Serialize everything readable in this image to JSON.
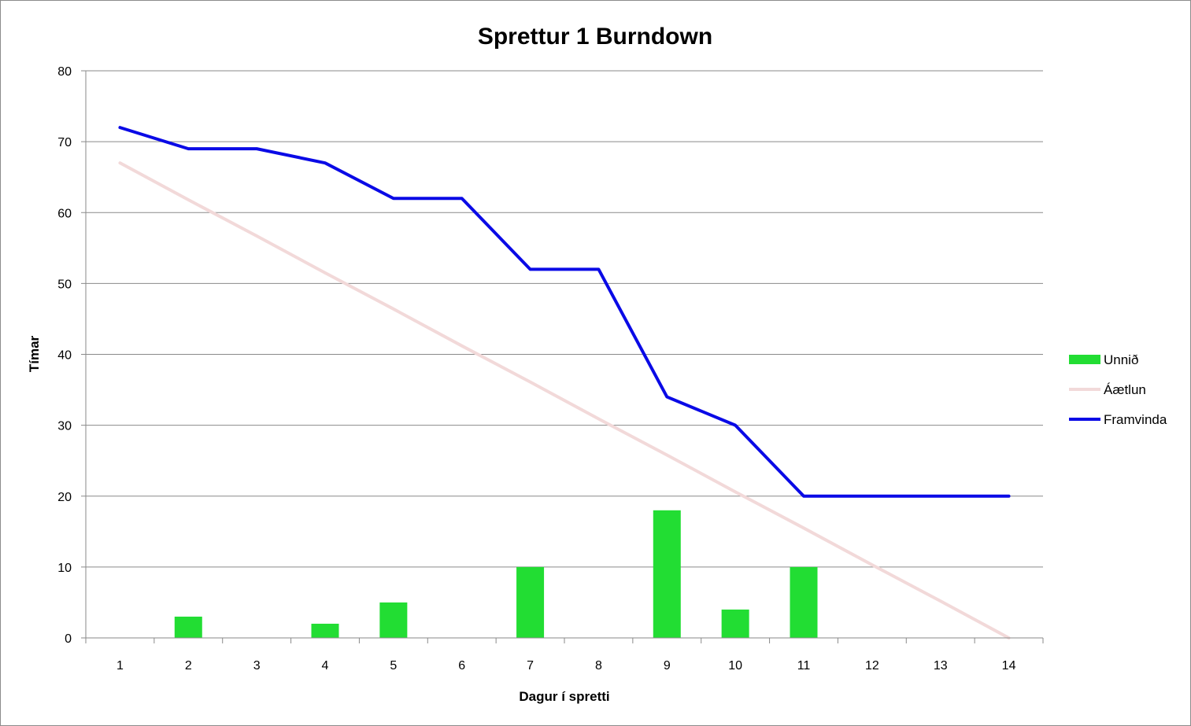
{
  "chart_data": {
    "type": "bar",
    "title": "Sprettur 1 Burndown",
    "xlabel": "Dagur í spretti",
    "ylabel": "Tímar",
    "categories": [
      "1",
      "2",
      "3",
      "4",
      "5",
      "6",
      "7",
      "8",
      "9",
      "10",
      "11",
      "12",
      "13",
      "14"
    ],
    "ylim": [
      0,
      80
    ],
    "yticks": [
      0,
      10,
      20,
      30,
      40,
      50,
      60,
      70,
      80
    ],
    "grid": true,
    "legend_position": "right",
    "series": [
      {
        "name": "Unnið",
        "type": "bar",
        "color": "#22dd33",
        "values": [
          0,
          3,
          0,
          2,
          5,
          0,
          10,
          0,
          18,
          4,
          10,
          0,
          0,
          0
        ]
      },
      {
        "name": "Áætlun",
        "type": "line",
        "color": "#f2d9d9",
        "values": [
          67,
          61.8,
          56.7,
          51.5,
          46.4,
          41.2,
          36.1,
          30.9,
          25.8,
          20.6,
          15.5,
          10.3,
          5.2,
          0
        ]
      },
      {
        "name": "Framvinda",
        "type": "line",
        "color": "#0a0ae6",
        "values": [
          72,
          69,
          69,
          67,
          62,
          62,
          52,
          52,
          34,
          30,
          20,
          20,
          20,
          20
        ]
      }
    ]
  }
}
